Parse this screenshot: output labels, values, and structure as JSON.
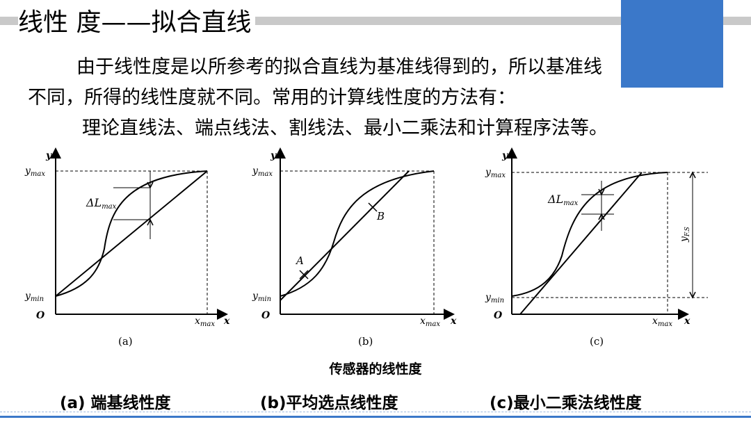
{
  "header": {
    "title": "线性 度——拟合直线"
  },
  "body": {
    "line1": "由于线性度是以所参考的拟合直线为基准线得到的，所以基准线",
    "line2": "不同，所得的线性度就不同。常用的计算线性度的方法有：",
    "line3": "理论直线法、端点线法、割线法、最小二乘法和计算程序法等。"
  },
  "figure": {
    "axis_y": "y",
    "axis_x": "x",
    "origin": "O",
    "ymax": "y",
    "ymin": "y",
    "xmax": "x",
    "max_sub": "max",
    "min_sub": "min",
    "delta_l": "ΔL",
    "point_a": "A",
    "point_b": "B",
    "yfs": "y",
    "fs_sub": "F.S",
    "panel_a": "(a)",
    "panel_b": "(b)",
    "panel_c": "(c)",
    "caption": "传感器的线性度"
  },
  "labels": {
    "a": "(a) 端基线性度",
    "b": "(b)平均选点线性度",
    "c": "(c)最小二乘法线性度"
  },
  "colors": {
    "accent": "#3b78c9",
    "band": "#c9c9c9"
  }
}
